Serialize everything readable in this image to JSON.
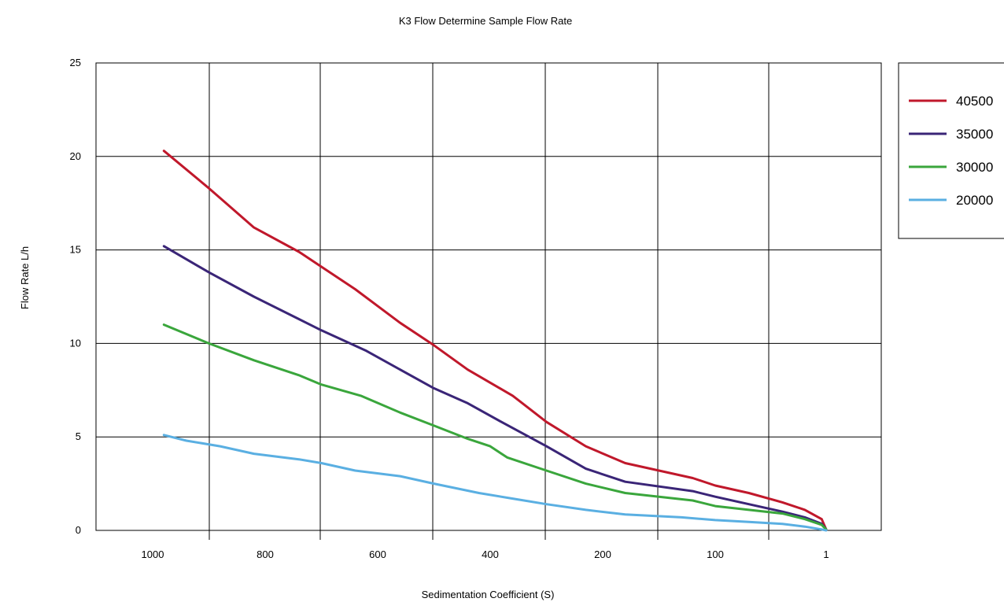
{
  "chart_data": {
    "type": "line",
    "title": "K3 Flow Determine Sample Flow Rate",
    "xlabel": "Sedimentation Coefficient (S)",
    "ylabel": "Flow Rate L/h",
    "x_direction": "reversed",
    "x_scale": "nonlinear, compressed toward 1",
    "x_ticks": [
      "1000",
      "800",
      "600",
      "400",
      "200",
      "100",
      "1"
    ],
    "y_ticks": [
      "0",
      "5",
      "10",
      "15",
      "20",
      "25"
    ],
    "ylim": [
      0,
      25
    ],
    "grid": true,
    "legend_position": "right",
    "series": [
      {
        "name": "40500",
        "color": "#c0182b",
        "points": [
          [
            980,
            20.3
          ],
          [
            900,
            18.3
          ],
          [
            820,
            16.2
          ],
          [
            740,
            14.9
          ],
          [
            700,
            14.1
          ],
          [
            640,
            12.9
          ],
          [
            560,
            11.1
          ],
          [
            500,
            9.9
          ],
          [
            440,
            8.6
          ],
          [
            360,
            7.2
          ],
          [
            300,
            5.8
          ],
          [
            230,
            4.5
          ],
          [
            180,
            3.6
          ],
          [
            120,
            2.8
          ],
          [
            100,
            2.4
          ],
          [
            70,
            2.0
          ],
          [
            40,
            1.5
          ],
          [
            20,
            1.1
          ],
          [
            5,
            0.6
          ],
          [
            1,
            0.05
          ]
        ]
      },
      {
        "name": "35000",
        "color": "#3a2577",
        "points": [
          [
            980,
            15.2
          ],
          [
            900,
            13.8
          ],
          [
            820,
            12.5
          ],
          [
            740,
            11.3
          ],
          [
            700,
            10.7
          ],
          [
            620,
            9.6
          ],
          [
            560,
            8.6
          ],
          [
            500,
            7.6
          ],
          [
            440,
            6.8
          ],
          [
            380,
            5.8
          ],
          [
            300,
            4.5
          ],
          [
            230,
            3.3
          ],
          [
            180,
            2.6
          ],
          [
            120,
            2.1
          ],
          [
            100,
            1.8
          ],
          [
            70,
            1.4
          ],
          [
            40,
            1.0
          ],
          [
            20,
            0.7
          ],
          [
            5,
            0.35
          ],
          [
            1,
            0.05
          ]
        ]
      },
      {
        "name": "30000",
        "color": "#3aa63c",
        "points": [
          [
            980,
            11.0
          ],
          [
            900,
            10.0
          ],
          [
            820,
            9.1
          ],
          [
            740,
            8.3
          ],
          [
            700,
            7.8
          ],
          [
            630,
            7.2
          ],
          [
            560,
            6.3
          ],
          [
            500,
            5.6
          ],
          [
            440,
            4.9
          ],
          [
            400,
            4.5
          ],
          [
            370,
            3.9
          ],
          [
            300,
            3.2
          ],
          [
            230,
            2.5
          ],
          [
            180,
            2.0
          ],
          [
            120,
            1.6
          ],
          [
            100,
            1.3
          ],
          [
            70,
            1.1
          ],
          [
            40,
            0.9
          ],
          [
            20,
            0.6
          ],
          [
            5,
            0.3
          ],
          [
            1,
            0.05
          ]
        ]
      },
      {
        "name": "20000",
        "color": "#5aafe2",
        "points": [
          [
            980,
            5.1
          ],
          [
            940,
            4.8
          ],
          [
            880,
            4.5
          ],
          [
            820,
            4.1
          ],
          [
            740,
            3.8
          ],
          [
            700,
            3.6
          ],
          [
            640,
            3.2
          ],
          [
            560,
            2.9
          ],
          [
            500,
            2.5
          ],
          [
            420,
            2.0
          ],
          [
            360,
            1.7
          ],
          [
            300,
            1.4
          ],
          [
            230,
            1.1
          ],
          [
            180,
            0.85
          ],
          [
            130,
            0.7
          ],
          [
            100,
            0.55
          ],
          [
            70,
            0.45
          ],
          [
            40,
            0.35
          ],
          [
            20,
            0.2
          ],
          [
            5,
            0.05
          ],
          [
            1,
            0.0
          ]
        ]
      }
    ]
  }
}
